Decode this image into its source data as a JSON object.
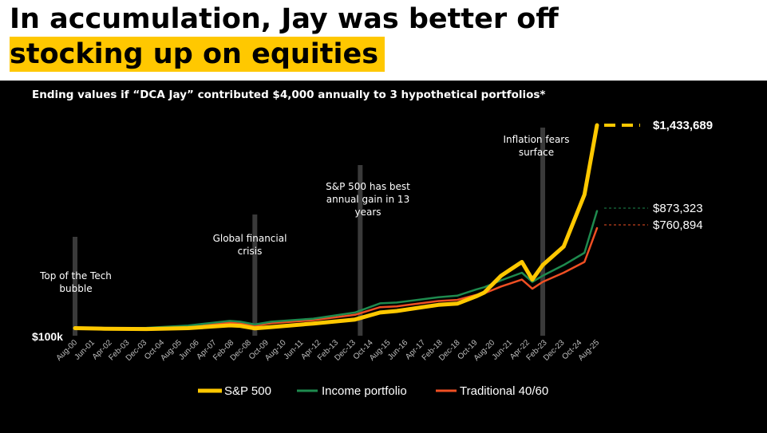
{
  "headline": {
    "line1": "In accumulation, Jay was better off",
    "line2": "stocking up on equities"
  },
  "colors": {
    "background": "#000000",
    "highlight": "#ffc800",
    "sp500": "#ffc800",
    "income": "#1e8a4e",
    "traditional": "#ef4f23",
    "event_bar": "#3a3a3a"
  },
  "chart_data": {
    "type": "line",
    "title": "Ending values if “DCA Jay” contributed $4,000 annually to 3 hypothetical portfolios*",
    "y_min_label": "$100k",
    "x_tick_labels": [
      "Aug-00",
      "Jun-01",
      "Apr-02",
      "Feb-03",
      "Dec-03",
      "Oct-04",
      "Aug-05",
      "Jun-06",
      "Apr-07",
      "Feb-08",
      "Dec-08",
      "Oct-09",
      "Aug-10",
      "Jun-11",
      "Apr-12",
      "Feb-13",
      "Dec-13",
      "Oct-14",
      "Aug-15",
      "Jun-16",
      "Apr-17",
      "Feb-18",
      "Dec-18",
      "Oct-19",
      "Aug-20",
      "Jun-21",
      "Apr-22",
      "Feb-23",
      "Dec-23",
      "Oct-24",
      "Aug-25"
    ],
    "x_years": [
      2000.58,
      2002,
      2004,
      2006,
      2008,
      2008.5,
      2009.2,
      2010,
      2012,
      2014,
      2015.2,
      2016,
      2018,
      2018.9,
      2019.8,
      2020.2,
      2021,
      2022,
      2022.5,
      2023,
      2024,
      2025,
      2025.6
    ],
    "series": [
      {
        "name": "S&P 500",
        "color": "#ffc800",
        "end_label": "$1,433,689",
        "values": [
          108,
          104,
          102,
          108,
          126,
          123,
          106,
          115,
          138,
          164,
          210,
          220,
          260,
          268,
          315,
          340,
          450,
          540,
          425,
          520,
          640,
          980,
          1433.689
        ]
      },
      {
        "name": "Income portfolio",
        "color": "#1e8a4e",
        "end_label": "$873,323",
        "values": [
          110,
          108,
          110,
          125,
          155,
          150,
          132,
          150,
          170,
          210,
          270,
          275,
          310,
          320,
          360,
          375,
          420,
          470,
          410,
          450,
          520,
          600,
          873.323
        ]
      },
      {
        "name": "Traditional 40/60",
        "color": "#ef4f23",
        "end_label": "$760,894",
        "values": [
          108,
          106,
          108,
          120,
          145,
          138,
          124,
          140,
          160,
          195,
          245,
          250,
          285,
          292,
          325,
          335,
          380,
          425,
          365,
          410,
          470,
          540,
          760.894
        ]
      }
    ],
    "annotations": [
      {
        "label": "Top of the Tech bubble",
        "lines": [
          "Top of the Tech",
          "bubble"
        ],
        "year": 2000.58
      },
      {
        "label": "Global financial crisis",
        "lines": [
          "Global financial",
          "crisis"
        ],
        "year": 2009.2
      },
      {
        "label": "S&P 500 has best annual gain in 13 years",
        "lines": [
          "S&P 500 has best",
          "annual gain in 13",
          "years"
        ],
        "year": 2014.25
      },
      {
        "label": "Inflation fears surface",
        "lines": [
          "Inflation fears",
          "surface"
        ],
        "year": 2023.0
      }
    ],
    "grid": false,
    "legend_position": "bottom"
  }
}
